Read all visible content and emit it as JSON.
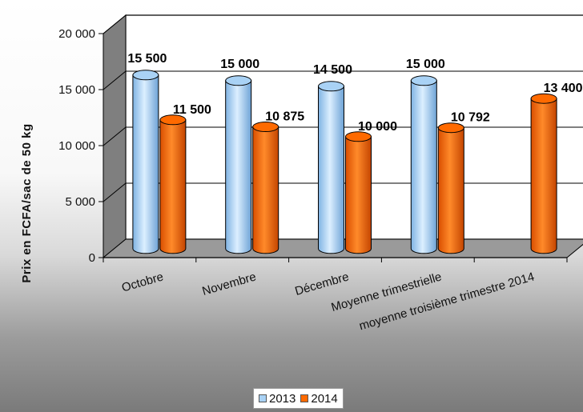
{
  "chart_data": {
    "type": "bar",
    "categories": [
      "Octobre",
      "Novembre",
      "Décembre",
      "Moyenne trimestrielle",
      "moyenne troisième trimestre 2014"
    ],
    "series": [
      {
        "name": "2013",
        "values": [
          15500,
          15000,
          14500,
          15000,
          null
        ],
        "labels": [
          "15 500",
          "15 000",
          "14 500",
          "15 000",
          ""
        ],
        "color": "#a9d2f5"
      },
      {
        "name": "2014",
        "values": [
          11500,
          10875,
          10000,
          10792,
          13400
        ],
        "labels": [
          "11 500",
          "10 875",
          "10 000",
          "10 792",
          "13 400"
        ],
        "color": "#ff6a00"
      }
    ],
    "ylabel": "Prix en FCFA/sac de 50 kg",
    "ylim": [
      0,
      20000
    ],
    "yticks": [
      {
        "value": 0,
        "label": "0"
      },
      {
        "value": 5000,
        "label": "5 000"
      },
      {
        "value": 10000,
        "label": "10 000"
      },
      {
        "value": 15000,
        "label": "15 000"
      },
      {
        "value": 20000,
        "label": "20 000"
      }
    ],
    "grid": true,
    "legend_position": "bottom",
    "style": "3d-cylinder"
  }
}
